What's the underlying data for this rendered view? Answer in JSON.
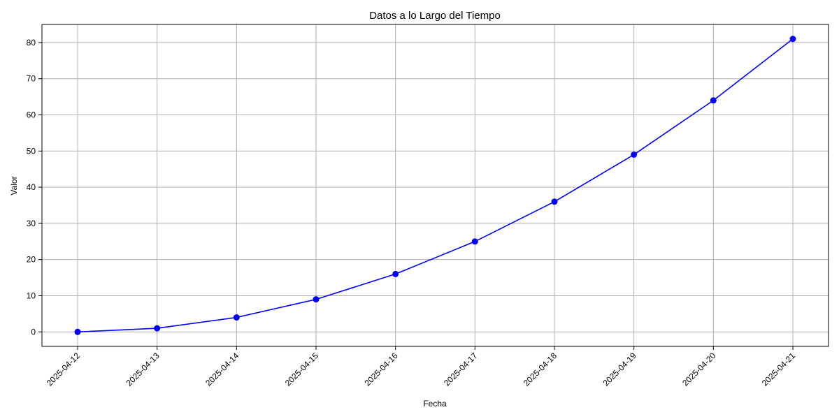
{
  "chart_data": {
    "type": "line",
    "title": "Datos a lo Largo del Tiempo",
    "xlabel": "Fecha",
    "ylabel": "Valor",
    "x": [
      "2025-04-12",
      "2025-04-13",
      "2025-04-14",
      "2025-04-15",
      "2025-04-16",
      "2025-04-17",
      "2025-04-18",
      "2025-04-19",
      "2025-04-20",
      "2025-04-21"
    ],
    "series": [
      {
        "values": [
          0,
          1,
          4,
          9,
          16,
          25,
          36,
          49,
          64,
          81
        ],
        "color": "#0000ff",
        "marker": "circle"
      }
    ],
    "ylim": [
      -4,
      85
    ],
    "yticks": [
      0,
      10,
      20,
      30,
      40,
      50,
      60,
      70,
      80
    ],
    "grid": true,
    "legend": "none"
  }
}
